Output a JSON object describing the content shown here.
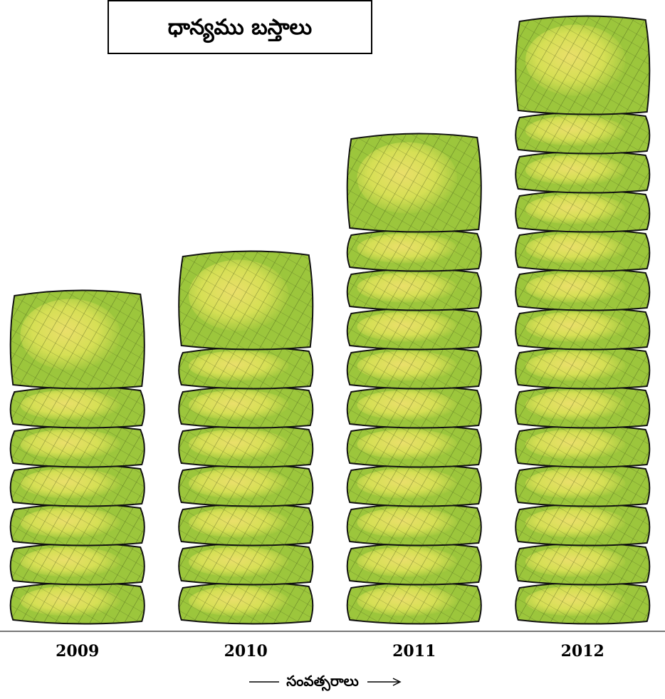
{
  "chart_data": {
    "type": "pictograph",
    "title": "ధాన్యము బస్తాలు",
    "x_label": "సంవత్సరాలు",
    "categories": [
      "2009",
      "2010",
      "2011",
      "2012"
    ],
    "values": [
      7,
      8,
      11,
      14
    ],
    "color": "#9cc63c"
  }
}
